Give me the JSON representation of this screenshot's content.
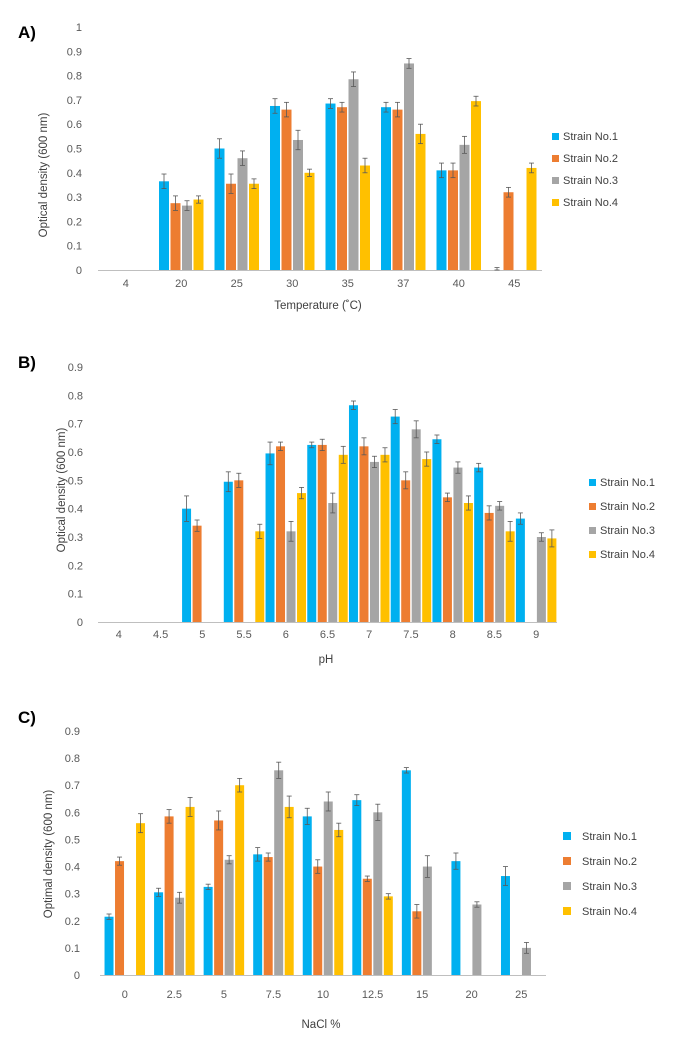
{
  "colors": {
    "strain1": "#00B0F0",
    "strain2": "#ED7D31",
    "strain3": "#A5A5A5",
    "strain4": "#FFC000",
    "error": "#595959",
    "axis": "#BFBFBF"
  },
  "chart_data": [
    {
      "type": "bar",
      "panel_label": "A)",
      "title": "",
      "xlabel": "Temperature (˚C)",
      "ylabel": "Optical density (600 nm)",
      "ylim": [
        0,
        1
      ],
      "yticks": [
        "0",
        "0.1",
        "0.2",
        "0.3",
        "0.4",
        "0.5",
        "0.6",
        "0.7",
        "0.8",
        "0.9",
        "1"
      ],
      "categories": [
        "4",
        "20",
        "25",
        "30",
        "35",
        "37",
        "40",
        "45"
      ],
      "legend_position": "right",
      "series": [
        {
          "name": "Strain No.1",
          "values": [
            0,
            0.365,
            0.5,
            0.675,
            0.685,
            0.67,
            0.41,
            0
          ],
          "errors": [
            0,
            0.03,
            0.04,
            0.03,
            0.02,
            0.02,
            0.03,
            0.01
          ]
        },
        {
          "name": "Strain No.2",
          "values": [
            0,
            0.275,
            0.355,
            0.66,
            0.67,
            0.66,
            0.41,
            0.32
          ],
          "errors": [
            0,
            0.03,
            0.04,
            0.03,
            0.02,
            0.03,
            0.03,
            0.02
          ]
        },
        {
          "name": "Strain No.3",
          "values": [
            0,
            0.265,
            0.46,
            0.535,
            0.785,
            0.85,
            0.515,
            0
          ],
          "errors": [
            0,
            0.02,
            0.03,
            0.04,
            0.03,
            0.02,
            0.035,
            0
          ]
        },
        {
          "name": "Strain No.4",
          "values": [
            0,
            0.29,
            0.355,
            0.4,
            0.43,
            0.56,
            0.695,
            0.42
          ],
          "errors": [
            0,
            0.015,
            0.02,
            0.015,
            0.03,
            0.04,
            0.02,
            0.02
          ]
        }
      ]
    },
    {
      "type": "bar",
      "panel_label": "B)",
      "title": "",
      "xlabel": "pH",
      "ylabel": "Optical density (600 nm)",
      "ylim": [
        0,
        0.9
      ],
      "yticks": [
        "0",
        "0.1",
        "0.2",
        "0.3",
        "0.4",
        "0.5",
        "0.6",
        "0.7",
        "0.8",
        "0.9"
      ],
      "categories": [
        "4",
        "4.5",
        "5",
        "5.5",
        "6",
        "6.5",
        "7",
        "7.5",
        "8",
        "8.5",
        "9"
      ],
      "legend_position": "right",
      "series": [
        {
          "name": "Strain No.1",
          "values": [
            0,
            0,
            0.4,
            0.495,
            0.595,
            0.625,
            0.765,
            0.725,
            0.645,
            0.545,
            0.365
          ],
          "errors": [
            0,
            0,
            0.045,
            0.035,
            0.04,
            0.01,
            0.015,
            0.025,
            0.015,
            0.015,
            0.02
          ]
        },
        {
          "name": "Strain No.2",
          "values": [
            0,
            0,
            0.34,
            0.5,
            0.62,
            0.625,
            0.62,
            0.5,
            0.44,
            0.385,
            0
          ],
          "errors": [
            0,
            0,
            0.02,
            0.025,
            0.015,
            0.02,
            0.03,
            0.03,
            0.015,
            0.025,
            0
          ]
        },
        {
          "name": "Strain No.3",
          "values": [
            0,
            0,
            0,
            0,
            0.32,
            0.42,
            0.565,
            0.68,
            0.545,
            0.41,
            0.3
          ],
          "errors": [
            0,
            0,
            0,
            0,
            0.035,
            0.035,
            0.02,
            0.03,
            0.02,
            0.015,
            0.015
          ]
        },
        {
          "name": "Strain No.4",
          "values": [
            0,
            0,
            0,
            0.32,
            0.455,
            0.59,
            0.59,
            0.575,
            0.42,
            0.32,
            0.295
          ],
          "errors": [
            0,
            0,
            0,
            0.025,
            0.02,
            0.03,
            0.025,
            0.025,
            0.025,
            0.035,
            0.03
          ]
        }
      ]
    },
    {
      "type": "bar",
      "panel_label": "C)",
      "title": "",
      "xlabel": "NaCl %",
      "ylabel": "Optimal density (600 nm)",
      "ylim": [
        0,
        0.9
      ],
      "yticks": [
        "0",
        "0.1",
        "0.2",
        "0.3",
        "0.4",
        "0.5",
        "0.6",
        "0.7",
        "0.8",
        "0.9"
      ],
      "categories": [
        "0",
        "2.5",
        "5",
        "7.5",
        "10",
        "12.5",
        "15",
        "20",
        "25"
      ],
      "legend_position": "right",
      "series": [
        {
          "name": "Strain No.1",
          "values": [
            0.215,
            0.305,
            0.325,
            0.445,
            0.585,
            0.645,
            0.755,
            0.42,
            0.365
          ],
          "errors": [
            0.01,
            0.015,
            0.01,
            0.025,
            0.03,
            0.02,
            0.01,
            0.03,
            0.035
          ]
        },
        {
          "name": "Strain No.2",
          "values": [
            0.42,
            0.585,
            0.57,
            0.435,
            0.4,
            0.355,
            0.235,
            0,
            0
          ],
          "errors": [
            0.015,
            0.025,
            0.035,
            0.015,
            0.025,
            0.01,
            0.025,
            0,
            0
          ]
        },
        {
          "name": "Strain No.3",
          "values": [
            0,
            0.285,
            0.425,
            0.755,
            0.64,
            0.6,
            0.4,
            0.26,
            0.1
          ],
          "errors": [
            0,
            0.02,
            0.015,
            0.03,
            0.035,
            0.03,
            0.04,
            0.01,
            0.02
          ]
        },
        {
          "name": "Strain No.4",
          "values": [
            0.56,
            0.62,
            0.7,
            0.62,
            0.535,
            0.29,
            0,
            0,
            0
          ],
          "errors": [
            0.035,
            0.035,
            0.025,
            0.04,
            0.025,
            0.01,
            0,
            0,
            0
          ]
        }
      ]
    }
  ]
}
